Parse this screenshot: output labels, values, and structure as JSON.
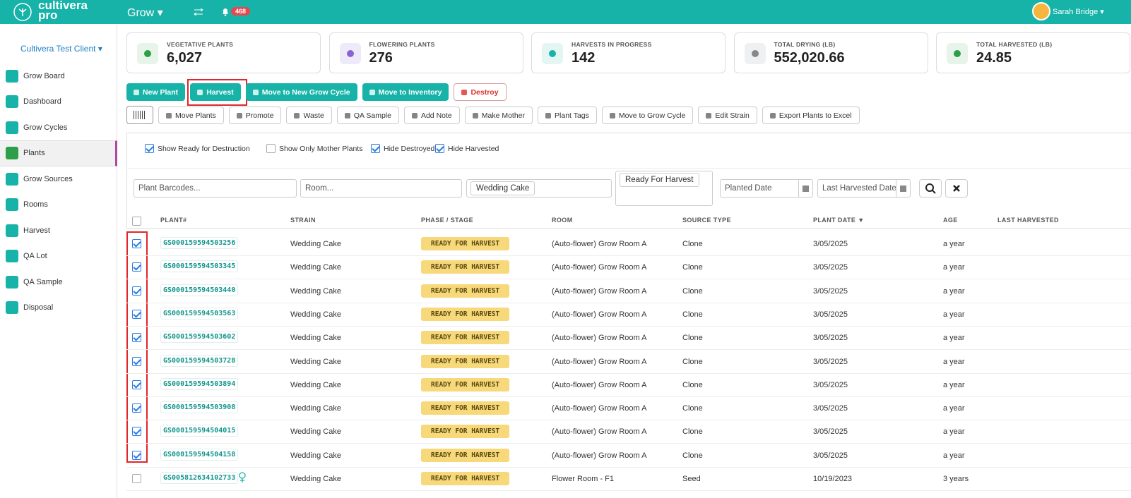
{
  "header": {
    "brand": "cultivera",
    "brand_sub": "pro",
    "module": "Grow",
    "notifications": "468",
    "user": "Sarah Bridge"
  },
  "sidebar": {
    "client": "Cultivera Test Client",
    "active": 3,
    "items": [
      "Grow Board",
      "Dashboard",
      "Grow Cycles",
      "Plants",
      "Grow Sources",
      "Rooms",
      "Harvest",
      "QA Lot",
      "QA Sample",
      "Disposal"
    ]
  },
  "stats": [
    {
      "label": "VEGETATIVE PLANTS",
      "value": "6,027"
    },
    {
      "label": "FLOWERING PLANTS",
      "value": "276"
    },
    {
      "label": "HARVESTS IN PROGRESS",
      "value": "142"
    },
    {
      "label": "TOTAL DRYING (LB)",
      "value": "552,020.66"
    },
    {
      "label": "TOTAL HARVESTED (LB)",
      "value": "24.85"
    }
  ],
  "primary_actions": [
    "New Plant",
    "Harvest",
    "Move to New Grow Cycle",
    "Move to Inventory",
    "Destroy"
  ],
  "secondary_actions": [
    "Move Plants",
    "Promote",
    "Waste",
    "QA Sample",
    "Add Note",
    "Make Mother",
    "Plant Tags",
    "Move to Grow Cycle",
    "Edit Strain",
    "Export Plants to Excel"
  ],
  "filters": [
    {
      "label": "Show Ready for Destruction",
      "checked": true
    },
    {
      "label": "Show Only Mother Plants",
      "checked": false
    },
    {
      "label": "Hide Destroyed",
      "checked": true
    },
    {
      "label": "Hide Harvested",
      "checked": true
    }
  ],
  "search": {
    "barcodes": "Plant Barcodes...",
    "room": "Room...",
    "strain_tag": "Wedding Cake",
    "phase_tag": "Ready For Harvest",
    "planted_date": "Planted Date",
    "last_harvested_date": "Last Harvested Date"
  },
  "table": {
    "columns": [
      "PLANT#",
      "STRAIN",
      "PHASE / STAGE",
      "ROOM",
      "SOURCE TYPE",
      "PLANT DATE ▼",
      "AGE",
      "LAST HARVESTED"
    ],
    "rows": [
      {
        "checked": true,
        "plant": "GS000159594503256",
        "strain": "Wedding Cake",
        "phase": "READY FOR HARVEST",
        "room": "(Auto-flower) Grow Room A",
        "source": "Clone",
        "plant_date": "3/05/2025",
        "age": "a year"
      },
      {
        "checked": true,
        "plant": "GS000159594503345",
        "strain": "Wedding Cake",
        "phase": "READY FOR HARVEST",
        "room": "(Auto-flower) Grow Room A",
        "source": "Clone",
        "plant_date": "3/05/2025",
        "age": "a year"
      },
      {
        "checked": true,
        "plant": "GS000159594503440",
        "strain": "Wedding Cake",
        "phase": "READY FOR HARVEST",
        "room": "(Auto-flower) Grow Room A",
        "source": "Clone",
        "plant_date": "3/05/2025",
        "age": "a year"
      },
      {
        "checked": true,
        "plant": "GS000159594503563",
        "strain": "Wedding Cake",
        "phase": "READY FOR HARVEST",
        "room": "(Auto-flower) Grow Room A",
        "source": "Clone",
        "plant_date": "3/05/2025",
        "age": "a year"
      },
      {
        "checked": true,
        "plant": "GS000159594503602",
        "strain": "Wedding Cake",
        "phase": "READY FOR HARVEST",
        "room": "(Auto-flower) Grow Room A",
        "source": "Clone",
        "plant_date": "3/05/2025",
        "age": "a year"
      },
      {
        "checked": true,
        "plant": "GS000159594503728",
        "strain": "Wedding Cake",
        "phase": "READY FOR HARVEST",
        "room": "(Auto-flower) Grow Room A",
        "source": "Clone",
        "plant_date": "3/05/2025",
        "age": "a year"
      },
      {
        "checked": true,
        "plant": "GS000159594503894",
        "strain": "Wedding Cake",
        "phase": "READY FOR HARVEST",
        "room": "(Auto-flower) Grow Room A",
        "source": "Clone",
        "plant_date": "3/05/2025",
        "age": "a year"
      },
      {
        "checked": true,
        "plant": "GS000159594503908",
        "strain": "Wedding Cake",
        "phase": "READY FOR HARVEST",
        "room": "(Auto-flower) Grow Room A",
        "source": "Clone",
        "plant_date": "3/05/2025",
        "age": "a year"
      },
      {
        "checked": true,
        "plant": "GS000159594504015",
        "strain": "Wedding Cake",
        "phase": "READY FOR HARVEST",
        "room": "(Auto-flower) Grow Room A",
        "source": "Clone",
        "plant_date": "3/05/2025",
        "age": "a year"
      },
      {
        "checked": true,
        "plant": "GS000159594504158",
        "strain": "Wedding Cake",
        "phase": "READY FOR HARVEST",
        "room": "(Auto-flower) Grow Room A",
        "source": "Clone",
        "plant_date": "3/05/2025",
        "age": "a year"
      },
      {
        "checked": false,
        "mother": true,
        "plant": "GS005812634102733",
        "strain": "Wedding Cake",
        "phase": "READY FOR HARVEST",
        "room": "Flower Room - F1",
        "source": "Seed",
        "plant_date": "10/19/2023",
        "age": "3 years"
      }
    ]
  }
}
